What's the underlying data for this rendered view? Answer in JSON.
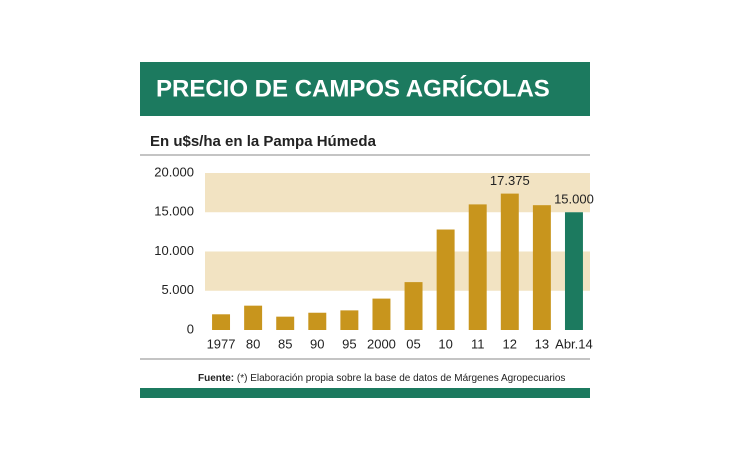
{
  "chart_data": {
    "type": "bar",
    "title": "PRECIO DE CAMPOS AGRÍCOLAS",
    "subtitle": "En u$s/ha en la Pampa Húmeda",
    "categories": [
      "1977",
      "80",
      "85",
      "90",
      "95",
      "2000",
      "05",
      "10",
      "11",
      "12",
      "13",
      "Abr.14"
    ],
    "values": [
      2000,
      3100,
      1700,
      2200,
      2500,
      4000,
      6100,
      12800,
      16000,
      17375,
      15900,
      15000
    ],
    "value_labels": [
      null,
      null,
      null,
      null,
      null,
      null,
      null,
      null,
      null,
      "17.375",
      null,
      "15.000"
    ],
    "colors": [
      "#c8951d",
      "#c8951d",
      "#c8951d",
      "#c8951d",
      "#c8951d",
      "#c8951d",
      "#c8951d",
      "#c8951d",
      "#c8951d",
      "#c8951d",
      "#c8951d",
      "#1c7a5f"
    ],
    "ylim": [
      0,
      20000
    ],
    "yticks": [
      0,
      {
        "value": 5000,
        "label": "5.000"
      },
      {
        "value": 10000,
        "label": "10.000"
      },
      {
        "value": 15000,
        "label": "15.000"
      },
      {
        "value": 20000,
        "label": "20.000"
      }
    ],
    "band_color": "#f2e3c2",
    "source_label": "Fuente:",
    "source_text": "(*) Elaboración propia sobre la base de datos de Márgenes Agropecuarios"
  }
}
